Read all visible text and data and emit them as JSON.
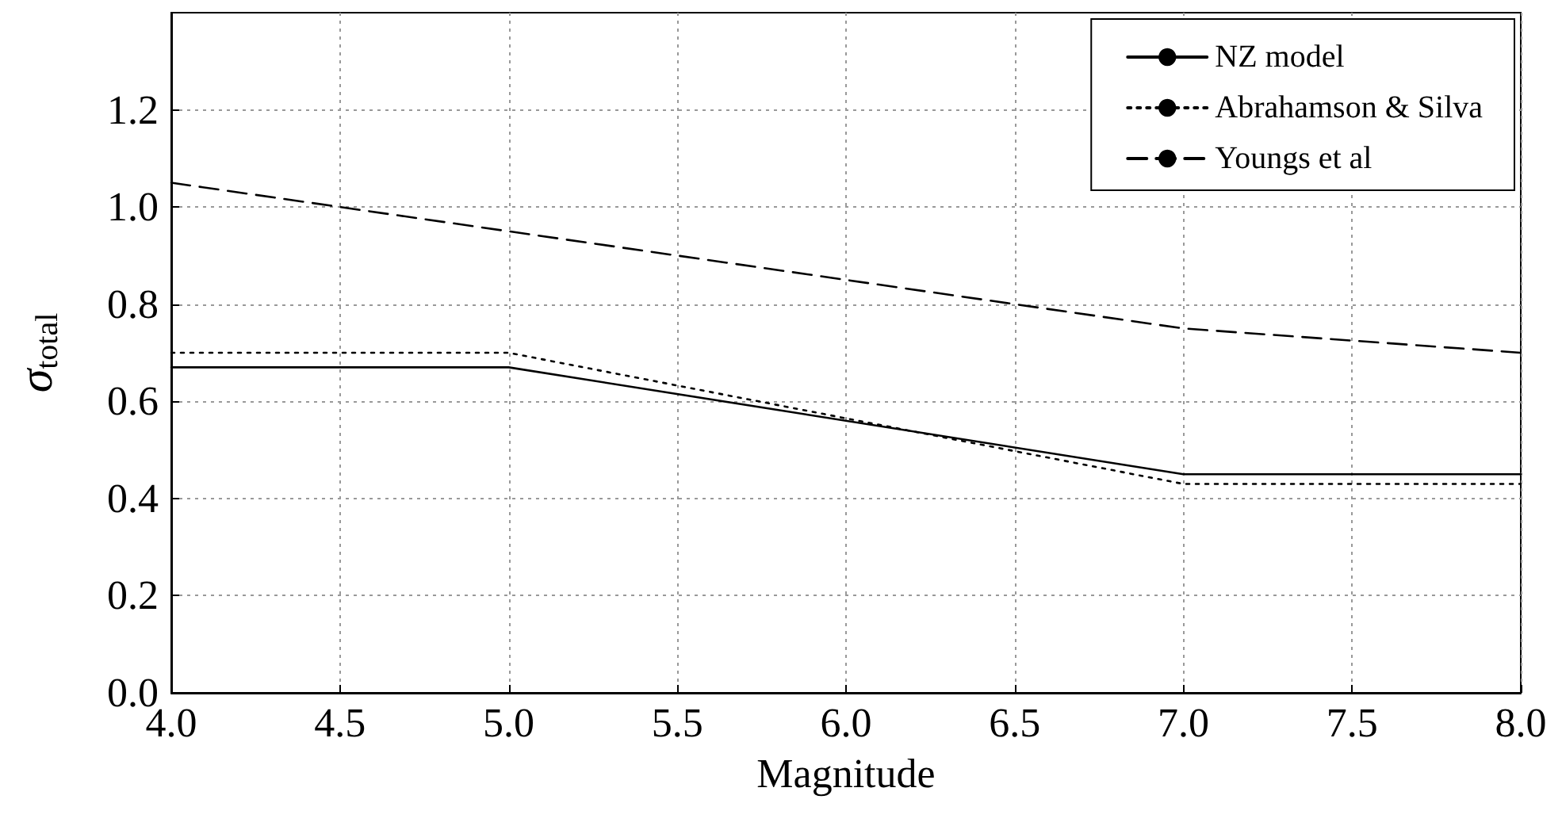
{
  "chart_data": {
    "type": "line",
    "xlabel": "Magnitude",
    "ylabel": "σ$_{total}$",
    "x": [
      4.0,
      5.0,
      7.0,
      8.0
    ],
    "series": [
      {
        "name": "NZ model",
        "color": "#000000",
        "line_style": "solid",
        "values": [
          0.67,
          0.67,
          0.45,
          0.45
        ]
      },
      {
        "name": "Abrahamson & Silva",
        "color": "#000000",
        "line_style": "dotted",
        "values": [
          0.7,
          0.7,
          0.43,
          0.43
        ]
      },
      {
        "name": "Youngs et al",
        "color": "#000000",
        "line_style": "dashed",
        "values": [
          1.05,
          0.95,
          0.75,
          0.7
        ]
      }
    ],
    "xlim": [
      4.0,
      8.0
    ],
    "xticks": [
      {
        "value": 4,
        "label": "4.0"
      },
      4.5,
      {
        "value": 5,
        "label": "5.0"
      },
      5.5,
      {
        "value": 6,
        "label": "6.0"
      },
      6.5,
      {
        "value": 7,
        "label": "7.0"
      },
      7.5,
      {
        "value": 8,
        "label": "8.0"
      }
    ],
    "ylim": [
      0,
      1.4
    ],
    "yticks": [
      {
        "value": 0,
        "label": "0.0"
      },
      0.2,
      0.4,
      0.6,
      0.8,
      {
        "value": 1,
        "label": "1.0"
      },
      1.2
    ],
    "grid": true,
    "legend": "top right",
    "marker": "none"
  }
}
